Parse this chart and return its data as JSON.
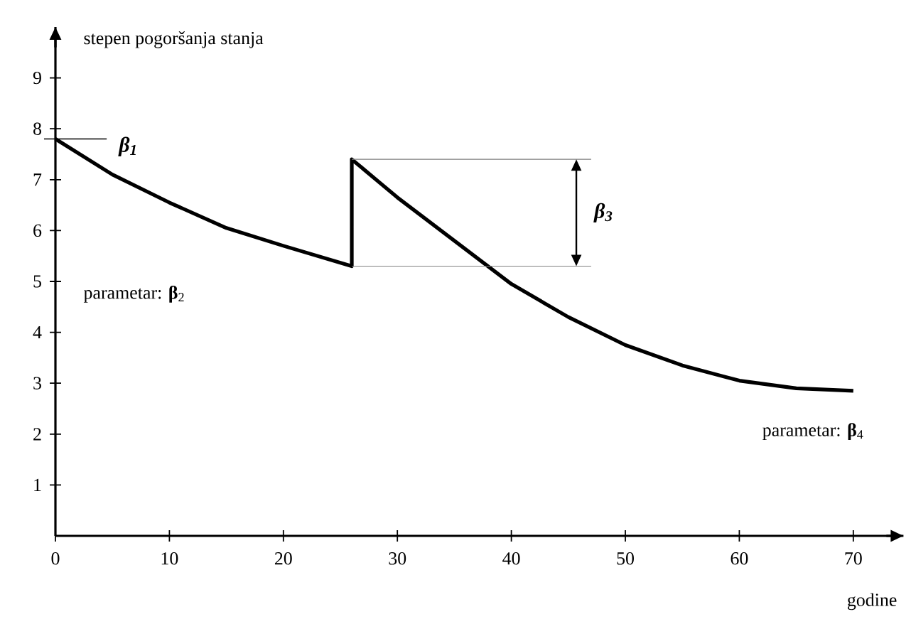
{
  "chart_data": {
    "type": "line",
    "xlabel": "godine",
    "ylabel": "stepen pogoršanja stanja",
    "x": [
      0,
      5,
      10,
      15,
      20,
      26,
      26,
      30,
      35,
      40,
      45,
      50,
      55,
      60,
      65,
      70
    ],
    "series": [
      {
        "color": "#000000",
        "values": [
          7.8,
          7.1,
          6.55,
          6.05,
          5.7,
          5.3,
          7.4,
          6.65,
          5.8,
          4.95,
          4.3,
          3.75,
          3.35,
          3.05,
          2.9,
          2.85
        ]
      }
    ],
    "xlim": [
      0,
      74.4
    ],
    "ylim": [
      0,
      10
    ],
    "xticks": [
      0,
      10,
      20,
      30,
      40,
      50,
      60,
      70
    ],
    "yticks": [
      1,
      2,
      3,
      4,
      5,
      6,
      7,
      8,
      9
    ],
    "marker": "none",
    "line_style": "solid",
    "annotations": [
      {
        "text": "β$_{1}$",
        "x": 0,
        "y": 7.8
      },
      "parametar: **β**$_{2}$",
      "β$_{3}$",
      "parametar: **β**$_{4}$"
    ]
  }
}
